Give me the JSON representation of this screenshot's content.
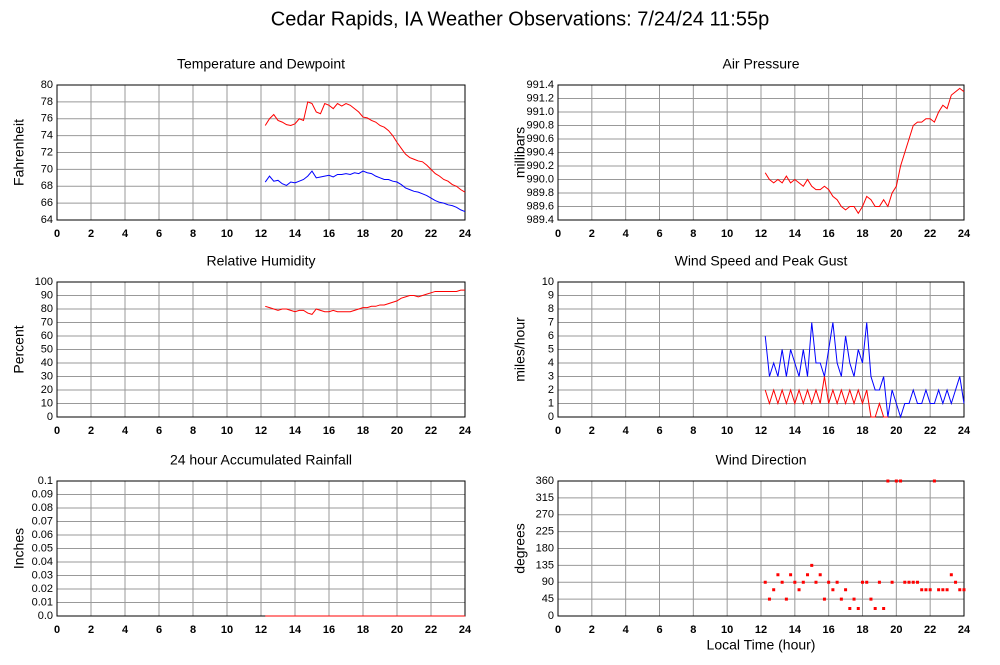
{
  "title": "Cedar Rapids, IA Weather Observations: 7/24/24 11:55p",
  "chart_data": [
    {
      "type": "line",
      "title": "Temperature and Dewpoint",
      "ylabel": "Fahrenheit",
      "x": [
        12.25,
        12.5,
        12.75,
        13,
        13.25,
        13.5,
        13.75,
        14,
        14.25,
        14.5,
        14.75,
        15,
        15.25,
        15.5,
        15.75,
        16,
        16.25,
        16.5,
        16.75,
        17,
        17.25,
        17.5,
        17.75,
        18,
        18.25,
        18.5,
        18.75,
        19,
        19.25,
        19.5,
        19.75,
        20,
        20.25,
        20.5,
        20.75,
        21,
        21.25,
        21.5,
        21.75,
        22,
        22.25,
        22.5,
        22.75,
        23,
        23.25,
        23.5,
        23.75,
        24
      ],
      "series": [
        {
          "color": "#ff0000",
          "values": [
            75.2,
            76,
            76.5,
            75.8,
            75.6,
            75.3,
            75.2,
            75.4,
            76,
            75.8,
            78,
            77.8,
            76.8,
            76.6,
            77.8,
            77.6,
            77.2,
            77.8,
            77.5,
            77.8,
            77.6,
            77.2,
            76.8,
            76.2,
            76.1,
            75.8,
            75.6,
            75.2,
            75,
            74.6,
            74,
            73.2,
            72.5,
            71.8,
            71.4,
            71.2,
            71,
            70.9,
            70.5,
            70,
            69.5,
            69.2,
            68.8,
            68.6,
            68.2,
            68,
            67.6,
            67.3
          ]
        },
        {
          "color": "#0000ff",
          "values": [
            68.5,
            69.2,
            68.6,
            68.7,
            68.3,
            68.1,
            68.5,
            68.4,
            68.6,
            68.8,
            69.2,
            69.8,
            69,
            69.1,
            69.2,
            69.3,
            69.1,
            69.4,
            69.4,
            69.5,
            69.4,
            69.6,
            69.5,
            69.8,
            69.6,
            69.5,
            69.2,
            69,
            68.8,
            68.8,
            68.6,
            68.5,
            68.2,
            67.8,
            67.6,
            67.4,
            67.3,
            67.1,
            66.9,
            66.6,
            66.3,
            66.1,
            66,
            65.8,
            65.7,
            65.5,
            65.2,
            65
          ]
        }
      ],
      "xlim": [
        0,
        24
      ],
      "xticks": [
        0,
        2,
        4,
        6,
        8,
        10,
        12,
        14,
        16,
        18,
        20,
        22,
        24
      ],
      "ylim": [
        64,
        80
      ],
      "yticks": [
        64,
        66,
        68,
        70,
        72,
        74,
        76,
        78,
        80
      ],
      "grid": true
    },
    {
      "type": "line",
      "title": "Air Pressure",
      "ylabel": "millibars",
      "x": [
        12.25,
        12.5,
        12.75,
        13,
        13.25,
        13.5,
        13.75,
        14,
        14.25,
        14.5,
        14.75,
        15,
        15.25,
        15.5,
        15.75,
        16,
        16.25,
        16.5,
        16.75,
        17,
        17.25,
        17.5,
        17.75,
        18,
        18.25,
        18.5,
        18.75,
        19,
        19.25,
        19.5,
        19.75,
        20,
        20.25,
        20.5,
        20.75,
        21,
        21.25,
        21.5,
        21.75,
        22,
        22.25,
        22.5,
        22.75,
        23,
        23.25,
        23.5,
        23.75,
        24
      ],
      "series": [
        {
          "color": "#ff0000",
          "values": [
            990.1,
            990.0,
            989.95,
            990.0,
            989.95,
            990.05,
            989.95,
            990.0,
            989.95,
            989.9,
            990.0,
            989.9,
            989.85,
            989.85,
            989.9,
            989.85,
            989.75,
            989.7,
            989.6,
            989.55,
            989.6,
            989.6,
            989.5,
            989.6,
            989.75,
            989.7,
            989.6,
            989.6,
            989.7,
            989.6,
            989.8,
            989.9,
            990.2,
            990.4,
            990.6,
            990.8,
            990.85,
            990.85,
            990.9,
            990.9,
            990.85,
            991.0,
            991.1,
            991.05,
            991.25,
            991.3,
            991.35,
            991.3
          ]
        }
      ],
      "xlim": [
        0,
        24
      ],
      "xticks": [
        0,
        2,
        4,
        6,
        8,
        10,
        12,
        14,
        16,
        18,
        20,
        22,
        24
      ],
      "ylim": [
        989.4,
        991.4
      ],
      "yticks": [
        989.4,
        989.6,
        989.8,
        {
          "value": 990,
          "label": "990.0"
        },
        990.2,
        990.4,
        990.6,
        990.8,
        {
          "value": 991,
          "label": "991.0"
        },
        991.2,
        991.4
      ],
      "grid": true
    },
    {
      "type": "line",
      "title": "Relative Humidity",
      "ylabel": "Percent",
      "x": [
        12.25,
        12.5,
        12.75,
        13,
        13.25,
        13.5,
        13.75,
        14,
        14.25,
        14.5,
        14.75,
        15,
        15.25,
        15.5,
        15.75,
        16,
        16.25,
        16.5,
        16.75,
        17,
        17.25,
        17.5,
        17.75,
        18,
        18.25,
        18.5,
        18.75,
        19,
        19.25,
        19.5,
        19.75,
        20,
        20.25,
        20.5,
        20.75,
        21,
        21.25,
        21.5,
        21.75,
        22,
        22.25,
        22.5,
        22.75,
        23,
        23.25,
        23.5,
        23.75,
        24
      ],
      "series": [
        {
          "color": "#ff0000",
          "values": [
            82,
            81,
            80,
            79,
            80,
            80,
            79,
            78,
            79,
            79,
            77,
            76,
            80,
            79,
            78,
            78,
            79,
            78,
            78,
            78,
            78,
            79,
            80,
            81,
            81,
            82,
            82,
            83,
            83,
            84,
            85,
            86,
            88,
            89,
            90,
            90,
            89,
            90,
            91,
            92,
            93,
            93,
            93,
            93,
            93,
            93,
            94,
            94
          ]
        }
      ],
      "xlim": [
        0,
        24
      ],
      "xticks": [
        0,
        2,
        4,
        6,
        8,
        10,
        12,
        14,
        16,
        18,
        20,
        22,
        24
      ],
      "ylim": [
        0,
        100
      ],
      "yticks": [
        0,
        10,
        20,
        30,
        40,
        50,
        60,
        70,
        80,
        90,
        100
      ],
      "grid": true
    },
    {
      "type": "line",
      "title": "Wind Speed and Peak Gust",
      "ylabel": "miles/hour",
      "x": [
        12.25,
        12.5,
        12.75,
        13,
        13.25,
        13.5,
        13.75,
        14,
        14.25,
        14.5,
        14.75,
        15,
        15.25,
        15.5,
        15.75,
        16,
        16.25,
        16.5,
        16.75,
        17,
        17.25,
        17.5,
        17.75,
        18,
        18.25,
        18.5,
        18.75,
        19,
        19.25,
        19.5,
        19.75,
        20,
        20.25,
        20.5,
        20.75,
        21,
        21.25,
        21.5,
        21.75,
        22,
        22.25,
        22.5,
        22.75,
        23,
        23.25,
        23.5,
        23.75,
        24
      ],
      "series": [
        {
          "color": "#0000ff",
          "values": [
            6,
            3,
            4,
            3,
            5,
            3,
            5,
            4,
            3,
            5,
            3,
            7,
            4,
            4,
            3,
            5,
            7,
            4,
            3,
            6,
            4,
            3,
            5,
            4,
            7,
            3,
            2,
            2,
            3,
            0,
            2,
            1,
            0,
            1,
            1,
            2,
            1,
            1,
            2,
            1,
            1,
            2,
            1,
            2,
            1,
            2,
            3,
            1
          ]
        },
        {
          "color": "#ff0000",
          "values": [
            2,
            1,
            2,
            1,
            2,
            1,
            2,
            1,
            2,
            1,
            2,
            1,
            2,
            1,
            3,
            1,
            2,
            1,
            2,
            1,
            2,
            1,
            2,
            1,
            2,
            0,
            0,
            1,
            0,
            0,
            null,
            null,
            null,
            null,
            null,
            null,
            null,
            null,
            null,
            null,
            null,
            null,
            null,
            null,
            null,
            null,
            null,
            null
          ]
        }
      ],
      "xlim": [
        0,
        24
      ],
      "xticks": [
        0,
        2,
        4,
        6,
        8,
        10,
        12,
        14,
        16,
        18,
        20,
        22,
        24
      ],
      "ylim": [
        0,
        10
      ],
      "yticks": [
        0,
        1,
        2,
        3,
        4,
        5,
        6,
        7,
        8,
        9,
        10
      ],
      "grid": true
    },
    {
      "type": "line",
      "title": "24 hour Accumulated Rainfall",
      "ylabel": "Inches",
      "x": [
        12.25,
        24
      ],
      "series": [
        {
          "color": "#ff0000",
          "values": [
            0,
            0
          ]
        }
      ],
      "xlim": [
        0,
        24
      ],
      "xticks": [
        0,
        2,
        4,
        6,
        8,
        10,
        12,
        14,
        16,
        18,
        20,
        22,
        24
      ],
      "ylim": [
        0,
        0.1
      ],
      "yticks": [
        {
          "value": 0,
          "label": "0.0"
        },
        0.01,
        0.02,
        0.03,
        0.04,
        0.05,
        0.06,
        0.07,
        0.08,
        0.09,
        0.1
      ],
      "grid": true
    },
    {
      "type": "scatter",
      "title": "Wind Direction",
      "ylabel": "degrees",
      "xlabel": "Local Time (hour)",
      "x": [
        12.25,
        12.5,
        12.75,
        13,
        13.25,
        13.5,
        13.75,
        14,
        14.25,
        14.5,
        14.75,
        15,
        15.25,
        15.5,
        15.75,
        16,
        16.25,
        16.5,
        16.75,
        17,
        17.25,
        17.5,
        17.75,
        18,
        18.25,
        18.5,
        18.75,
        19,
        19.25,
        19.5,
        19.75,
        20,
        20.25,
        20.5,
        20.75,
        21,
        21.25,
        21.5,
        21.75,
        22,
        22.25,
        22.5,
        22.75,
        23,
        23.25,
        23.5,
        23.75,
        24
      ],
      "series": [
        {
          "color": "#ff0000",
          "values": [
            90,
            45,
            70,
            110,
            90,
            45,
            110,
            90,
            70,
            90,
            110,
            135,
            90,
            110,
            45,
            90,
            70,
            90,
            45,
            70,
            20,
            45,
            20,
            90,
            90,
            45,
            20,
            90,
            20,
            360,
            90,
            360,
            360,
            90,
            90,
            90,
            90,
            70,
            70,
            70,
            360,
            70,
            70,
            70,
            110,
            90,
            70,
            70
          ]
        }
      ],
      "xlim": [
        0,
        24
      ],
      "xticks": [
        0,
        2,
        4,
        6,
        8,
        10,
        12,
        14,
        16,
        18,
        20,
        22,
        24
      ],
      "ylim": [
        0,
        360
      ],
      "yticks": [
        0,
        45,
        90,
        135,
        180,
        225,
        270,
        315,
        360
      ],
      "grid": true
    }
  ]
}
